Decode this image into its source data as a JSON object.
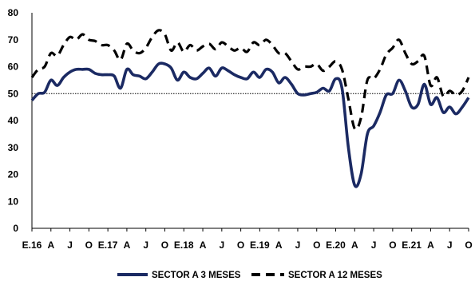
{
  "chart_data": {
    "type": "line",
    "ylim": [
      0,
      80
    ],
    "yticks": [
      0,
      10,
      20,
      30,
      40,
      50,
      60,
      70,
      80
    ],
    "reference_line": 50,
    "grid": false,
    "legend_position": "bottom",
    "x_tick_labels": [
      "E.16",
      "A",
      "J",
      "O",
      "E.17",
      "A",
      "J",
      "O",
      "E.18",
      "A",
      "J",
      "O",
      "E.19",
      "A",
      "J",
      "O",
      "E.20",
      "A",
      "J",
      "O",
      "E.21",
      "A",
      "J",
      "O"
    ],
    "x": [
      "2016-01",
      "2016-02",
      "2016-03",
      "2016-04",
      "2016-05",
      "2016-06",
      "2016-07",
      "2016-08",
      "2016-09",
      "2016-10",
      "2016-11",
      "2016-12",
      "2017-01",
      "2017-02",
      "2017-03",
      "2017-04",
      "2017-05",
      "2017-06",
      "2017-07",
      "2017-08",
      "2017-09",
      "2017-10",
      "2017-11",
      "2017-12",
      "2018-01",
      "2018-02",
      "2018-03",
      "2018-04",
      "2018-05",
      "2018-06",
      "2018-07",
      "2018-08",
      "2018-09",
      "2018-10",
      "2018-11",
      "2018-12",
      "2019-01",
      "2019-02",
      "2019-03",
      "2019-04",
      "2019-05",
      "2019-06",
      "2019-07",
      "2019-08",
      "2019-09",
      "2019-10",
      "2019-11",
      "2019-12",
      "2020-01",
      "2020-02",
      "2020-03",
      "2020-04",
      "2020-05",
      "2020-06",
      "2020-07",
      "2020-08",
      "2020-09",
      "2020-10",
      "2020-11",
      "2020-12",
      "2021-01",
      "2021-02",
      "2021-03",
      "2021-04",
      "2021-05",
      "2021-06",
      "2021-07",
      "2021-08",
      "2021-09",
      "2021-10"
    ],
    "series": [
      {
        "name": "SECTOR A 3 MESES",
        "color": "#1b2a63",
        "style": "solid",
        "values": [
          47.5,
          50,
          50.5,
          55,
          53,
          56,
          58,
          59,
          59,
          59,
          57.5,
          57,
          57,
          56.5,
          52,
          59,
          57,
          56.5,
          55.5,
          58,
          61,
          61,
          59.5,
          55,
          58,
          56,
          55.5,
          57.5,
          59.5,
          56.5,
          59.5,
          58.5,
          57,
          56,
          55.5,
          58,
          56,
          59,
          58,
          54,
          56,
          53.5,
          50,
          49.5,
          50,
          50.5,
          52,
          51,
          55.5,
          52,
          30,
          16,
          20,
          35,
          38,
          43,
          49.5,
          50,
          55,
          51,
          45,
          46,
          53.5,
          46,
          48.5,
          43,
          45,
          42.5,
          45,
          48.5
        ]
      },
      {
        "name": "SECTOR A 12 MESES",
        "color": "#000000",
        "style": "dashed",
        "values": [
          56,
          59,
          60,
          65,
          64,
          68,
          71,
          70,
          72,
          70,
          69.5,
          68,
          68,
          66,
          62.5,
          68.5,
          66,
          65,
          67,
          71,
          73.5,
          72,
          66,
          69,
          65.5,
          68,
          66,
          67.5,
          68.5,
          66.5,
          69,
          67.5,
          66,
          67,
          65.5,
          69,
          68,
          70,
          68,
          65,
          65,
          62,
          59,
          60,
          60,
          61,
          58.5,
          60,
          62,
          59,
          48,
          37,
          41,
          55,
          55.5,
          59,
          64.5,
          67,
          70,
          65,
          61,
          62,
          64,
          53,
          56,
          49,
          51,
          49.5,
          51,
          56
        ]
      }
    ]
  }
}
